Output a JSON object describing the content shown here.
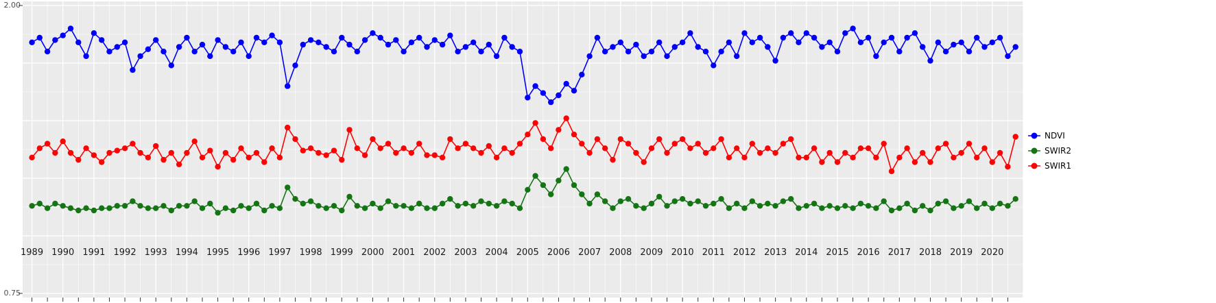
{
  "chart_data": {
    "type": "line",
    "title": "",
    "xlabel": "",
    "ylabel": "",
    "panel_bg": "#EBEBEB",
    "grid_color": "#FFFFFF",
    "axis_text_color_y": "#4D4D4D",
    "axis_text_color_x": "#1A1A1A",
    "tick_color": "#333333",
    "legend_position": "right",
    "x_axis": {
      "range": [
        1988.7,
        2021.0
      ],
      "tick_labels": [
        "1989",
        "1990",
        "1991",
        "1992",
        "1993",
        "1994",
        "1995",
        "1996",
        "1997",
        "1998",
        "1999",
        "2000",
        "2001",
        "2002",
        "2003",
        "2004",
        "2005",
        "2006",
        "2007",
        "2008",
        "2009",
        "2010",
        "2011",
        "2012",
        "2013",
        "2014",
        "2015",
        "2016",
        "2017",
        "2018",
        "2019",
        "2020"
      ]
    },
    "y_axis": {
      "range": [
        0.75,
        2.0
      ],
      "tick_labels": [
        "2.00",
        "0.75"
      ],
      "major_grid_step": 0.25,
      "minor_grid_step": 0.125
    },
    "sampling": {
      "x_start": 1989.0,
      "x_step": 0.25
    },
    "series": [
      {
        "name": "NDVI",
        "color": "#0000FA",
        "values": [
          1.84,
          1.86,
          1.8,
          1.85,
          1.87,
          1.9,
          1.84,
          1.78,
          1.88,
          1.85,
          1.8,
          1.82,
          1.84,
          1.72,
          1.78,
          1.81,
          1.85,
          1.8,
          1.74,
          1.82,
          1.86,
          1.8,
          1.83,
          1.78,
          1.85,
          1.82,
          1.8,
          1.84,
          1.78,
          1.86,
          1.84,
          1.87,
          1.84,
          1.65,
          1.74,
          1.83,
          1.85,
          1.84,
          1.82,
          1.8,
          1.86,
          1.83,
          1.8,
          1.85,
          1.88,
          1.86,
          1.83,
          1.85,
          1.8,
          1.84,
          1.86,
          1.82,
          1.85,
          1.83,
          1.87,
          1.8,
          1.82,
          1.84,
          1.8,
          1.83,
          1.78,
          1.86,
          1.82,
          1.8,
          1.6,
          1.65,
          1.62,
          1.58,
          1.61,
          1.66,
          1.63,
          1.7,
          1.78,
          1.86,
          1.8,
          1.82,
          1.84,
          1.8,
          1.83,
          1.78,
          1.8,
          1.84,
          1.78,
          1.82,
          1.84,
          1.88,
          1.82,
          1.8,
          1.74,
          1.8,
          1.84,
          1.78,
          1.88,
          1.84,
          1.86,
          1.82,
          1.76,
          1.86,
          1.88,
          1.84,
          1.88,
          1.86,
          1.82,
          1.84,
          1.8,
          1.88,
          1.9,
          1.84,
          1.86,
          1.78,
          1.84,
          1.86,
          1.8,
          1.86,
          1.88,
          1.82,
          1.76,
          1.84,
          1.8,
          1.83,
          1.84,
          1.8,
          1.86,
          1.82,
          1.84,
          1.86,
          1.78,
          1.82
        ]
      },
      {
        "name": "SWIR2",
        "color": "#157515",
        "values": [
          1.13,
          1.14,
          1.12,
          1.14,
          1.13,
          1.12,
          1.11,
          1.12,
          1.11,
          1.12,
          1.12,
          1.13,
          1.13,
          1.15,
          1.13,
          1.12,
          1.12,
          1.13,
          1.11,
          1.13,
          1.13,
          1.15,
          1.12,
          1.14,
          1.1,
          1.12,
          1.11,
          1.13,
          1.12,
          1.14,
          1.11,
          1.13,
          1.12,
          1.21,
          1.16,
          1.14,
          1.15,
          1.13,
          1.12,
          1.13,
          1.11,
          1.17,
          1.13,
          1.12,
          1.14,
          1.12,
          1.15,
          1.13,
          1.13,
          1.12,
          1.14,
          1.12,
          1.12,
          1.14,
          1.16,
          1.13,
          1.14,
          1.13,
          1.15,
          1.14,
          1.13,
          1.15,
          1.14,
          1.12,
          1.2,
          1.26,
          1.22,
          1.18,
          1.24,
          1.29,
          1.22,
          1.18,
          1.14,
          1.18,
          1.15,
          1.12,
          1.15,
          1.16,
          1.13,
          1.12,
          1.14,
          1.17,
          1.13,
          1.15,
          1.16,
          1.14,
          1.15,
          1.13,
          1.14,
          1.16,
          1.12,
          1.14,
          1.12,
          1.15,
          1.13,
          1.14,
          1.13,
          1.15,
          1.16,
          1.12,
          1.13,
          1.14,
          1.12,
          1.13,
          1.12,
          1.13,
          1.12,
          1.14,
          1.13,
          1.12,
          1.15,
          1.11,
          1.12,
          1.14,
          1.11,
          1.13,
          1.11,
          1.14,
          1.15,
          1.12,
          1.13,
          1.15,
          1.12,
          1.14,
          1.12,
          1.14,
          1.13,
          1.16
        ]
      },
      {
        "name": "SWIR1",
        "color": "#FA0505",
        "values": [
          1.34,
          1.38,
          1.4,
          1.36,
          1.41,
          1.36,
          1.33,
          1.38,
          1.35,
          1.32,
          1.36,
          1.37,
          1.38,
          1.4,
          1.36,
          1.34,
          1.39,
          1.33,
          1.36,
          1.31,
          1.36,
          1.41,
          1.34,
          1.37,
          1.3,
          1.36,
          1.33,
          1.38,
          1.34,
          1.36,
          1.32,
          1.38,
          1.34,
          1.47,
          1.42,
          1.37,
          1.38,
          1.36,
          1.35,
          1.37,
          1.33,
          1.46,
          1.38,
          1.35,
          1.42,
          1.38,
          1.4,
          1.36,
          1.38,
          1.36,
          1.4,
          1.35,
          1.35,
          1.34,
          1.42,
          1.38,
          1.4,
          1.38,
          1.36,
          1.39,
          1.34,
          1.38,
          1.36,
          1.4,
          1.44,
          1.49,
          1.42,
          1.38,
          1.46,
          1.51,
          1.44,
          1.4,
          1.36,
          1.42,
          1.38,
          1.33,
          1.42,
          1.4,
          1.36,
          1.32,
          1.38,
          1.42,
          1.36,
          1.4,
          1.42,
          1.38,
          1.4,
          1.36,
          1.38,
          1.42,
          1.34,
          1.38,
          1.34,
          1.4,
          1.36,
          1.38,
          1.36,
          1.4,
          1.42,
          1.34,
          1.34,
          1.38,
          1.32,
          1.36,
          1.32,
          1.36,
          1.34,
          1.38,
          1.38,
          1.34,
          1.4,
          1.28,
          1.34,
          1.38,
          1.32,
          1.36,
          1.32,
          1.38,
          1.4,
          1.34,
          1.36,
          1.4,
          1.34,
          1.38,
          1.32,
          1.36,
          1.3,
          1.43
        ]
      }
    ]
  }
}
